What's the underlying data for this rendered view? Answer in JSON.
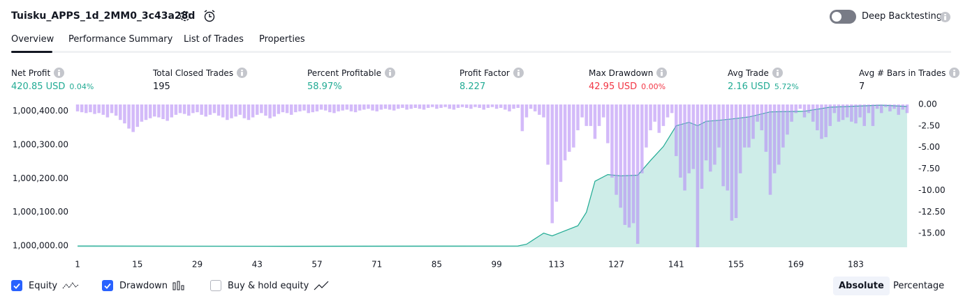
{
  "header": {
    "title": "Tuisku_APPS_1d_2MM0_3c43a28d",
    "deep_backtesting": "Deep Backtesting"
  },
  "tabs": [
    "Overview",
    "Performance Summary",
    "List of Trades",
    "Properties"
  ],
  "stats": [
    {
      "label": "Net Profit",
      "value": "420.85 USD",
      "change": "0.04%",
      "color": "#22ab94"
    },
    {
      "label": "Total Closed Trades",
      "value": "195",
      "color": "#131722"
    },
    {
      "label": "Percent Profitable",
      "value": "58.97%",
      "color": "#22ab94"
    },
    {
      "label": "Profit Factor",
      "value": "8.227",
      "color": "#22ab94"
    },
    {
      "label": "Max Drawdown",
      "value": "42.95 USD",
      "change": "0.00%",
      "color": "#f23645"
    },
    {
      "label": "Avg Trade",
      "value": "2.16 USD",
      "change": "5.72%",
      "color": "#22ab94"
    },
    {
      "label": "Avg # Bars in Trades",
      "value": "7",
      "color": "#131722"
    }
  ],
  "chart_data": {
    "type": "combo",
    "xlim": [
      0.5,
      195.5
    ],
    "xticks": [
      1,
      15,
      29,
      43,
      57,
      71,
      85,
      99,
      113,
      127,
      141,
      155,
      169,
      183
    ],
    "ylim": [
      999996,
      1000420
    ],
    "yticks": [
      {
        "value": 1000000,
        "label": "1,000,000.00"
      },
      {
        "value": 1000100,
        "label": "1,000,100.00"
      },
      {
        "value": 1000200,
        "label": "1,000,200.00"
      },
      {
        "value": 1000300,
        "label": "1,000,300.00"
      },
      {
        "value": 1000400,
        "label": "1,000,400.00"
      }
    ],
    "y2lim": [
      -16.6,
      0
    ],
    "y2ticks": [
      {
        "value": 0,
        "label": "0.00"
      },
      {
        "value": -2.5,
        "label": "-2.50"
      },
      {
        "value": -5,
        "label": "-5.00"
      },
      {
        "value": -7.5,
        "label": "-7.50"
      },
      {
        "value": -10,
        "label": "-10.00"
      },
      {
        "value": -12.5,
        "label": "-12.50"
      },
      {
        "value": -15,
        "label": "-15.00"
      }
    ],
    "series": [
      {
        "name": "Drawdown",
        "type": "bar",
        "axis": "y2",
        "color": "rgba(181,140,245,0.6)",
        "values": [
          -0.8,
          -0.9,
          -1.0,
          -0.9,
          -1.1,
          -1.0,
          -1.2,
          -1.5,
          -1.0,
          -1.3,
          -1.8,
          -2.2,
          -2.8,
          -3.2,
          -2.6,
          -2.0,
          -1.8,
          -1.6,
          -1.4,
          -1.5,
          -1.7,
          -1.9,
          -1.5,
          -1.2,
          -1.0,
          -1.1,
          -1.3,
          -1.0,
          -0.9,
          -1.2,
          -1.4,
          -1.2,
          -1.0,
          -1.3,
          -1.5,
          -1.8,
          -1.6,
          -1.4,
          -1.2,
          -1.6,
          -1.8,
          -1.5,
          -1.2,
          -1.0,
          -1.3,
          -1.6,
          -1.4,
          -1.1,
          -0.9,
          -1.0,
          -1.2,
          -0.9,
          -0.8,
          -0.7,
          -1.0,
          -0.9,
          -0.8,
          -0.6,
          -0.7,
          -0.9,
          -1.0,
          -0.8,
          -0.7,
          -0.6,
          -0.8,
          -0.9,
          -0.7,
          -0.6,
          -0.5,
          -0.7,
          -0.8,
          -0.6,
          -0.5,
          -0.6,
          -0.7,
          -0.5,
          -0.4,
          -0.6,
          -0.5,
          -0.4,
          -0.5,
          -0.6,
          -0.4,
          -0.3,
          -0.5,
          -0.4,
          -0.3,
          -0.5,
          -0.6,
          -0.4,
          -0.3,
          -0.4,
          -0.5,
          -0.3,
          -0.4,
          -0.6,
          -0.4,
          -0.3,
          -0.5,
          -0.4,
          -0.6,
          -0.8,
          -0.5,
          -0.4,
          -3.1,
          -1.5,
          -0.5,
          -0.8,
          -1.2,
          -1.5,
          -7.0,
          -13.8,
          -11.3,
          -9.0,
          -6.5,
          -5.5,
          -5.0,
          -3.0,
          -1.5,
          -2.5,
          -2.5,
          -4.0,
          -2.5,
          -1.5,
          -4.5,
          -8.5,
          -10.5,
          -12.0,
          -14.0,
          -14.3,
          -13.8,
          -16.2,
          -8.0,
          -5.0,
          -3.0,
          -2.0,
          -3.3,
          -2.5,
          -1.5,
          -1.0,
          -6.0,
          -8.5,
          -10.0,
          -8.0,
          -7.5,
          -16.6,
          -9.8,
          -6.5,
          -7.8,
          -7.0,
          -5.0,
          -9.5,
          -10.0,
          -13.5,
          -13.2,
          -8.0,
          -5.0,
          -5.0,
          -4.0,
          -2.0,
          -3.0,
          -5.5,
          -10.5,
          -8.0,
          -7.0,
          -5.0,
          -3.5,
          -2.0,
          -1.0,
          -0.5,
          -1.5,
          -1.0,
          -2.0,
          -3.0,
          -4.0,
          -3.8,
          -2.5,
          -1.0,
          -2.0,
          -1.8,
          -1.5,
          -2.0,
          -2.2,
          -1.5,
          -2.5,
          -1.0,
          -2.5,
          -0.5,
          -1.0,
          -0.3,
          -0.8,
          -0.5,
          -1.2,
          -0.6,
          -1.0
        ]
      },
      {
        "name": "Equity",
        "type": "area",
        "color": "#22ab94",
        "fill": "rgba(34,171,148,0.22)",
        "x": [
          1,
          50,
          104,
          106,
          109,
          110,
          112,
          114,
          118,
          120,
          122,
          125,
          128,
          132,
          135,
          138,
          141,
          144,
          146,
          148,
          151,
          154,
          158,
          163,
          171,
          177,
          189,
          195
        ],
        "values": [
          1000000,
          999999,
          1000000,
          1000005,
          1000030,
          1000038,
          1000030,
          1000040,
          1000060,
          1000100,
          1000192,
          1000212,
          1000208,
          1000210,
          1000254,
          1000295,
          1000357,
          1000367,
          1000357,
          1000370,
          1000373,
          1000377,
          1000383,
          1000398,
          1000400,
          1000412,
          1000418,
          1000414
        ]
      }
    ]
  },
  "controls": {
    "buy_hold": "Buy & hold equity",
    "views": [
      "Absolute",
      "Percentage"
    ]
  }
}
